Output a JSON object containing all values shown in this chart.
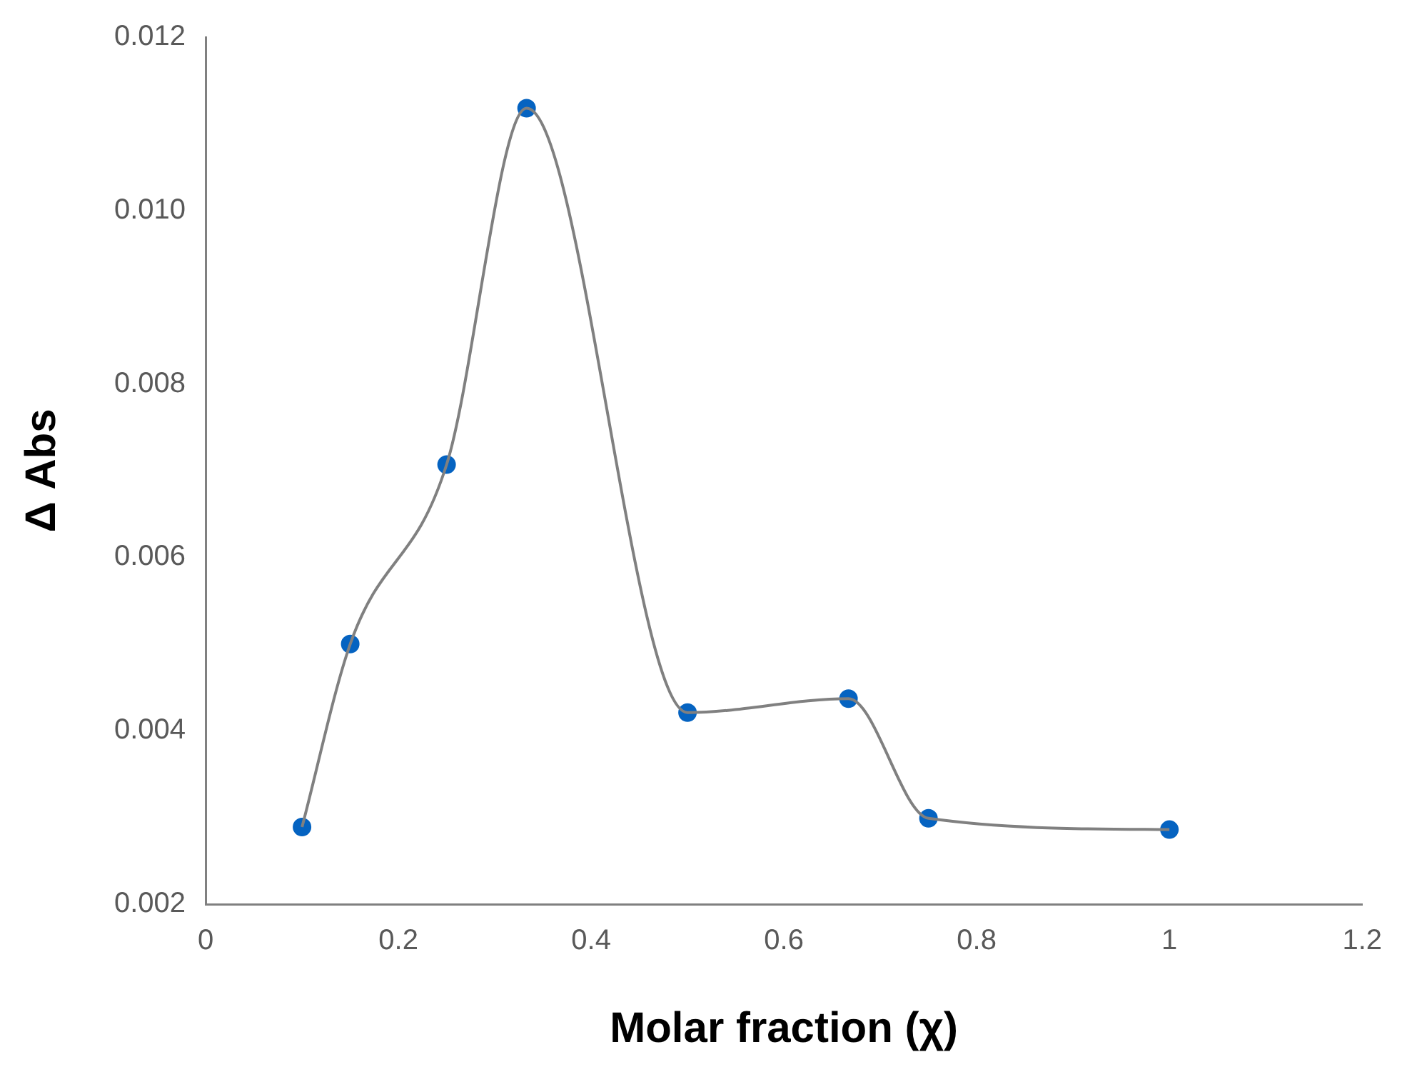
{
  "chart_data": {
    "type": "line",
    "xlabel": "Molar fraction (χ)",
    "ylabel": "Δ Abs",
    "x": [
      0.1,
      0.15,
      0.25,
      0.333,
      0.5,
      0.667,
      0.75,
      1.0
    ],
    "series": [
      {
        "color": "#808080",
        "marker": "none",
        "values": [
          0.00289,
          0.005,
          0.00707,
          0.01118,
          0.00421,
          0.00437,
          0.00299,
          0.00286
        ]
      },
      {
        "type": "scatter",
        "color": "#0563c1",
        "marker": "circle",
        "values": [
          0.00289,
          0.005,
          0.00707,
          0.01118,
          0.00421,
          0.00437,
          0.00299,
          0.00286
        ]
      }
    ],
    "xlim": [
      0,
      1.2
    ],
    "xticks": [
      0,
      0.2,
      0.4,
      0.6,
      0.8,
      1,
      1.2
    ],
    "ylim": [
      0.002,
      0.012
    ],
    "yticks": [
      0.002,
      0.004,
      0.006,
      0.008,
      {
        "value": 0.01,
        "label": "0.010"
      },
      0.012
    ],
    "grid": false,
    "legend": false
  }
}
